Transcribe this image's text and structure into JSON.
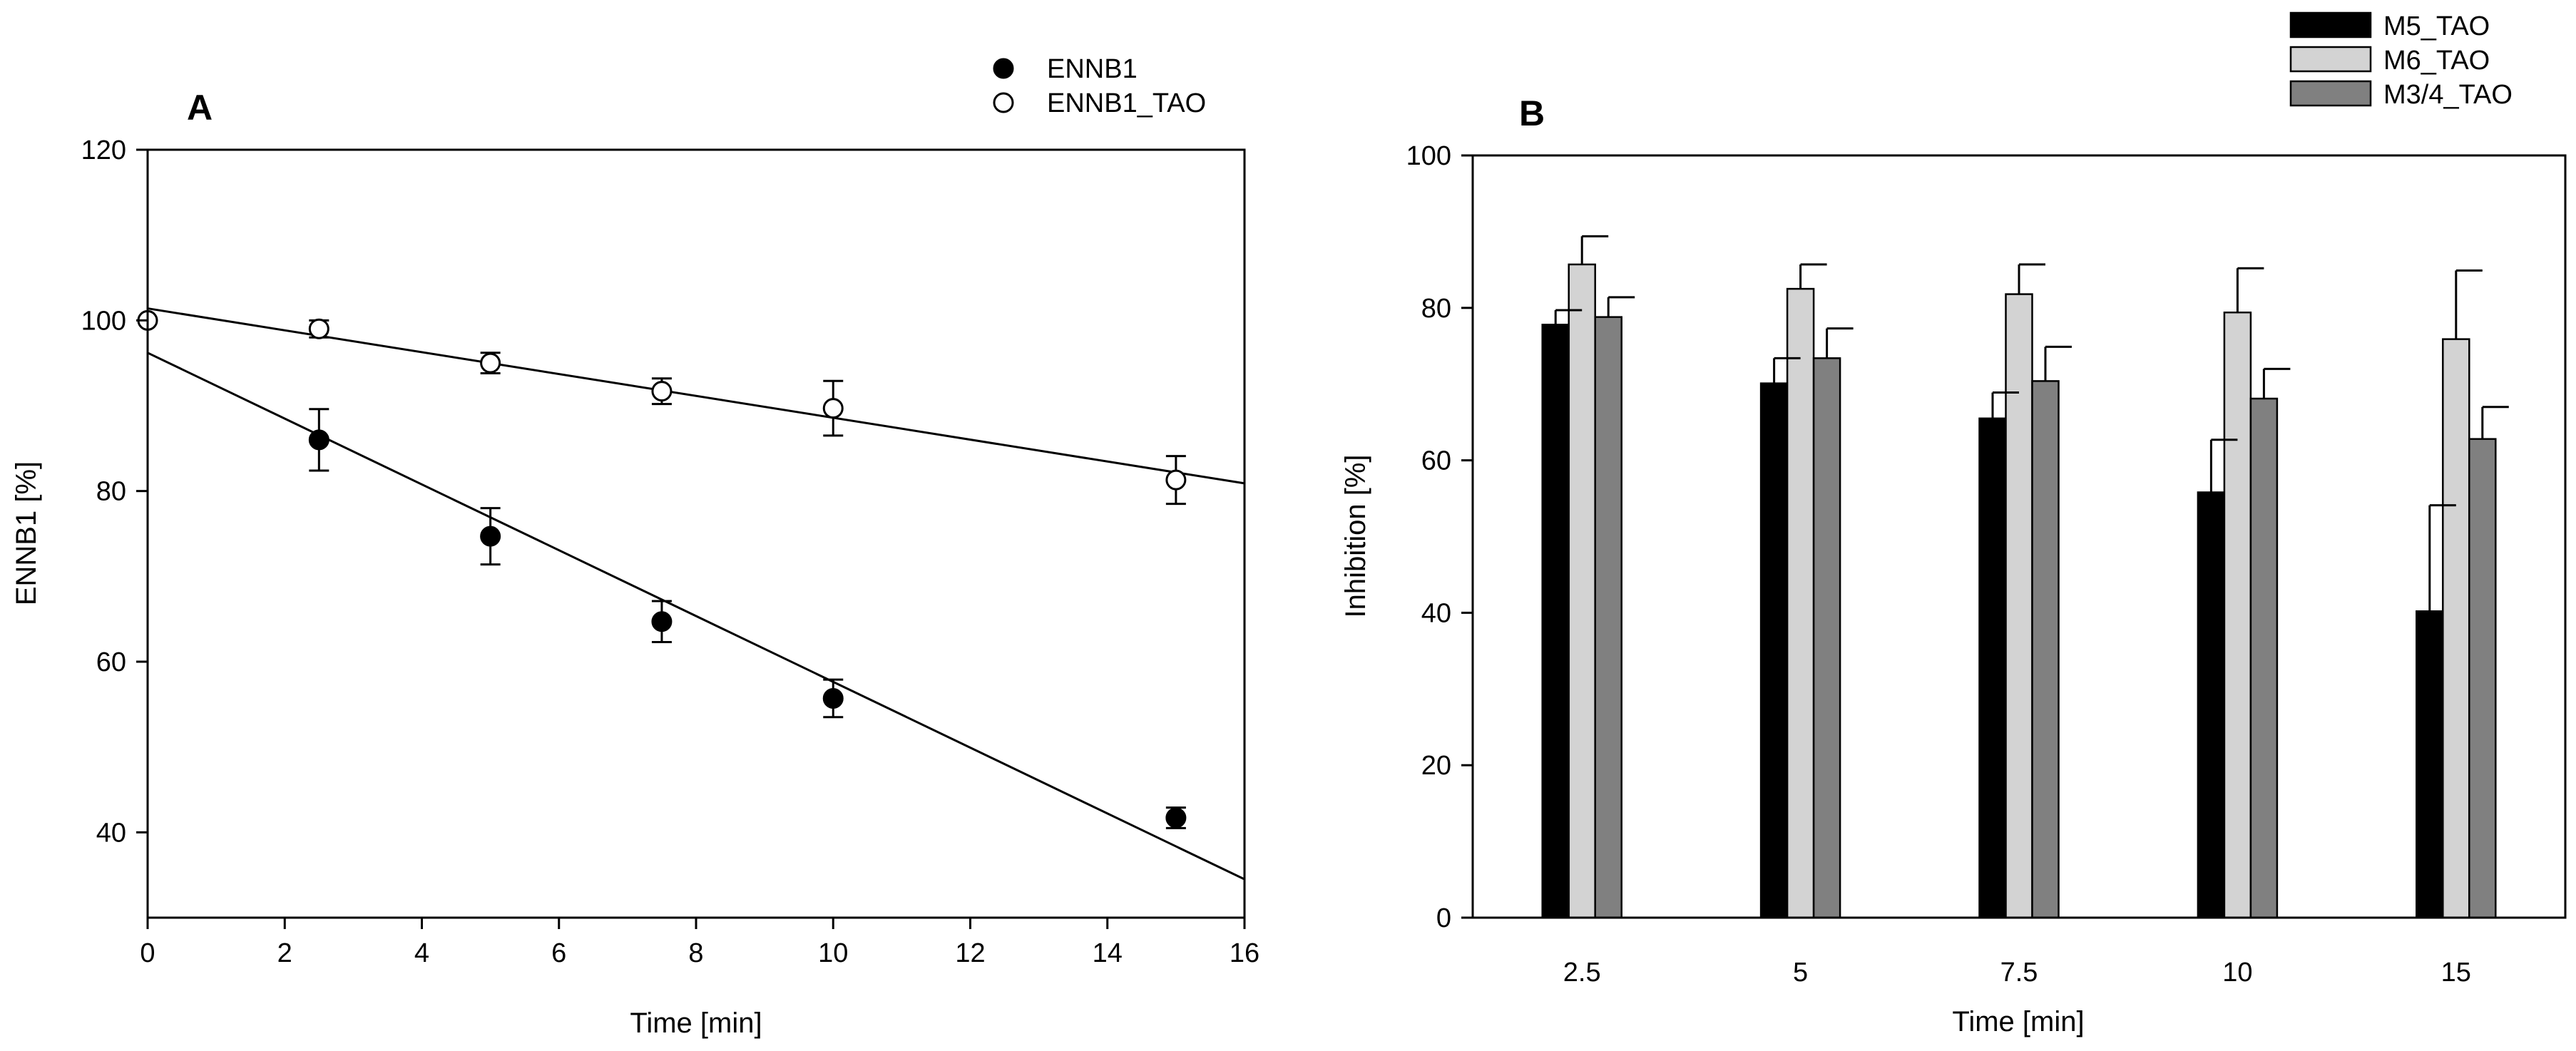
{
  "chart_data": [
    {
      "panel": "A",
      "type": "scatter",
      "xlabel": "Time [min]",
      "ylabel": "ENNB1 [%]",
      "xlim": [
        0,
        16
      ],
      "ylim": [
        30,
        120
      ],
      "xticks": [
        "0",
        "2",
        "4",
        "6",
        "8",
        "10",
        "12",
        "14",
        "16"
      ],
      "yticks": [
        "40",
        "60",
        "80",
        "100",
        "120"
      ],
      "legend_position": "top-right",
      "series": [
        {
          "name": "ENNB1",
          "marker": "filled-circle",
          "x": [
            2.5,
            5,
            7.5,
            10,
            15
          ],
          "y": [
            86,
            74.7,
            64.7,
            55.7,
            41.7
          ],
          "err": [
            3.6,
            3.3,
            2.4,
            2.2,
            1.2
          ],
          "fit_line": {
            "x": [
              0,
              16
            ],
            "y": [
              96.2,
              34.5
            ]
          }
        },
        {
          "name": "ENNB1_TAO",
          "marker": "open-circle",
          "x": [
            0,
            2.5,
            5,
            7.5,
            10,
            15
          ],
          "y": [
            100,
            99,
            95,
            91.7,
            89.7,
            81.3
          ],
          "err": [
            0,
            1.0,
            1.2,
            1.5,
            3.2,
            2.8
          ],
          "fit_line": {
            "x": [
              0,
              16
            ],
            "y": [
              101.4,
              80.9
            ]
          }
        }
      ]
    },
    {
      "panel": "B",
      "type": "bar",
      "xlabel": "Time [min]",
      "ylabel": "Inhibition [%]",
      "ylim": [
        0,
        100
      ],
      "yticks": [
        "0",
        "20",
        "40",
        "60",
        "80",
        "100"
      ],
      "categories": [
        "2.5",
        "5",
        "7.5",
        "10",
        "15"
      ],
      "legend_position": "top-right",
      "series": [
        {
          "name": "M5_TAO",
          "color": "#000000",
          "values": [
            77.8,
            70.1,
            65.5,
            55.8,
            40.2
          ],
          "err": [
            1.9,
            3.3,
            3.4,
            6.9,
            13.9
          ]
        },
        {
          "name": "M6_TAO",
          "color": "#d3d3d3",
          "values": [
            85.7,
            82.5,
            81.8,
            79.4,
            75.9
          ],
          "err": [
            3.7,
            3.2,
            3.9,
            5.8,
            9.0
          ]
        },
        {
          "name": "M3/4_TAO",
          "color": "#808080",
          "values": [
            78.8,
            73.4,
            70.4,
            68.1,
            62.8
          ],
          "err": [
            2.6,
            3.9,
            4.5,
            3.9,
            4.2
          ]
        }
      ]
    }
  ]
}
